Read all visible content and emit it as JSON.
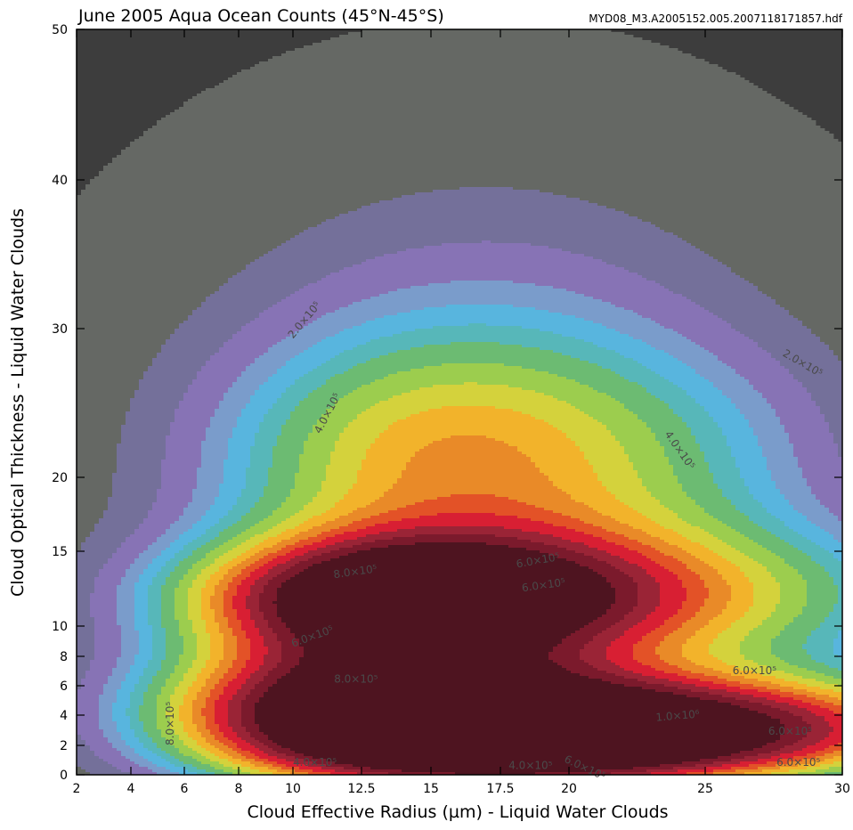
{
  "chart_data": {
    "type": "filled-contour",
    "title": "June 2005 Aqua Ocean Counts (45°N-45°S)",
    "subtitle": "MYD08_M3.A2005152.005.2007118171857.hdf",
    "xlabel": "Cloud Effective Radius (µm) - Liquid Water Clouds",
    "ylabel": "Cloud Optical Thickness - Liquid Water Clouds",
    "x_ticks": [
      "2",
      "4",
      "6",
      "8",
      "10",
      "12.5",
      "15",
      "17.5",
      "20",
      "25",
      "30"
    ],
    "y_ticks": [
      "0",
      "2",
      "4",
      "6",
      "8",
      "10",
      "15",
      "20",
      "30",
      "40",
      "50"
    ],
    "contour_labels": [
      {
        "text": "2.0×10⁵",
        "x": 10,
        "y": 29.3,
        "angle": -50
      },
      {
        "text": "4.0×10⁵",
        "x": 11,
        "y": 22.9,
        "angle": -62
      },
      {
        "text": "8.0×10⁵",
        "x": 11.5,
        "y": 13.2,
        "angle": -8
      },
      {
        "text": "6.0×10⁵",
        "x": 10,
        "y": 8.6,
        "angle": -20
      },
      {
        "text": "8.0×10⁵",
        "x": 11.5,
        "y": 6.2,
        "angle": 0
      },
      {
        "text": "4.0×10⁵",
        "x": 10,
        "y": 0.6,
        "angle": 0
      },
      {
        "text": "6.0×10⁵",
        "x": 18.1,
        "y": 13.9,
        "angle": -10
      },
      {
        "text": "6.0×10⁵",
        "x": 18.3,
        "y": 12.3,
        "angle": -8
      },
      {
        "text": "4.0×10⁵",
        "x": 17.8,
        "y": 0.4,
        "angle": 0
      },
      {
        "text": "6.0×10⁵",
        "x": 19.8,
        "y": 0.9,
        "angle": 25
      },
      {
        "text": "4.0×10⁵",
        "x": 23.5,
        "y": 22.9,
        "angle": 55
      },
      {
        "text": "2.0×10⁵",
        "x": 27.8,
        "y": 28.2,
        "angle": 30
      },
      {
        "text": "1.0×10⁶",
        "x": 23.2,
        "y": 3.6,
        "angle": -5
      },
      {
        "text": "6.0×10⁵",
        "x": 26,
        "y": 6.8,
        "angle": 0
      },
      {
        "text": "6.0×10⁵",
        "x": 27.3,
        "y": 2.7,
        "angle": 0
      },
      {
        "text": "6.0×10⁵",
        "x": 27.6,
        "y": 0.6,
        "angle": 0
      },
      {
        "text": "8.0×10⁵",
        "x": 5.6,
        "y": 2,
        "angle": -90
      }
    ],
    "colors": {
      "background": "#3d3d3d",
      "levels": [
        "#656864",
        "#74709a",
        "#8773b5",
        "#7a9ccb",
        "#58b5de",
        "#57b7b9",
        "#6cbb72",
        "#9ccd4e",
        "#d4d23c",
        "#f2b32b",
        "#e98a28",
        "#e35227",
        "#d81f33",
        "#9a2436",
        "#7b1a2c",
        "#4e1420"
      ]
    }
  }
}
